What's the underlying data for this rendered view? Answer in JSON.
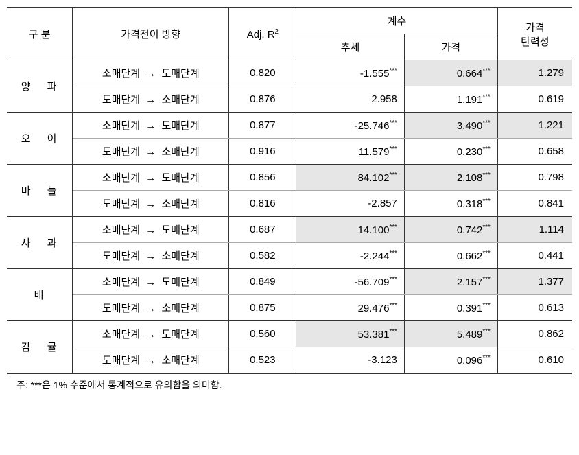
{
  "table": {
    "headers": {
      "category": "구  분",
      "direction": "가격전이 방향",
      "adjr2": "Adj. R",
      "adjr2_sup": "2",
      "coef_group": "계수",
      "trend": "추세",
      "price": "가격",
      "elasticity": "가격\n탄력성"
    },
    "arrow": "→",
    "dir_retail_to_whole": "소매단계",
    "dir_whole_to_retail": "도매단계",
    "categories": [
      {
        "name": "양  파",
        "rows": [
          {
            "dir_from": "소매단계",
            "dir_to": "도매단계",
            "adjr2": "0.820",
            "trend": "-1.555",
            "trend_sig": "***",
            "trend_hl": false,
            "price": "0.664",
            "price_sig": "***",
            "price_hl": true,
            "elast": "1.279",
            "elast_hl": true
          },
          {
            "dir_from": "도매단계",
            "dir_to": "소매단계",
            "adjr2": "0.876",
            "trend": "2.958",
            "trend_sig": "",
            "trend_hl": false,
            "price": "1.191",
            "price_sig": "***",
            "price_hl": false,
            "elast": "0.619",
            "elast_hl": false
          }
        ]
      },
      {
        "name": "오  이",
        "rows": [
          {
            "dir_from": "소매단계",
            "dir_to": "도매단계",
            "adjr2": "0.877",
            "trend": "-25.746",
            "trend_sig": "***",
            "trend_hl": false,
            "price": "3.490",
            "price_sig": "***",
            "price_hl": true,
            "elast": "1.221",
            "elast_hl": true
          },
          {
            "dir_from": "도매단계",
            "dir_to": "소매단계",
            "adjr2": "0.916",
            "trend": "11.579",
            "trend_sig": "***",
            "trend_hl": false,
            "price": "0.230",
            "price_sig": "***",
            "price_hl": false,
            "elast": "0.658",
            "elast_hl": false
          }
        ]
      },
      {
        "name": "마  늘",
        "rows": [
          {
            "dir_from": "소매단계",
            "dir_to": "도매단계",
            "adjr2": "0.856",
            "trend": "84.102",
            "trend_sig": "***",
            "trend_hl": true,
            "price": "2.108",
            "price_sig": "***",
            "price_hl": true,
            "elast": "0.798",
            "elast_hl": false
          },
          {
            "dir_from": "도매단계",
            "dir_to": "소매단계",
            "adjr2": "0.816",
            "trend": "-2.857",
            "trend_sig": "",
            "trend_hl": false,
            "price": "0.318",
            "price_sig": "***",
            "price_hl": false,
            "elast": "0.841",
            "elast_hl": false
          }
        ]
      },
      {
        "name": "사  과",
        "rows": [
          {
            "dir_from": "소매단계",
            "dir_to": "도매단계",
            "adjr2": "0.687",
            "trend": "14.100",
            "trend_sig": "***",
            "trend_hl": true,
            "price": "0.742",
            "price_sig": "***",
            "price_hl": true,
            "elast": "1.114",
            "elast_hl": true
          },
          {
            "dir_from": "도매단계",
            "dir_to": "소매단계",
            "adjr2": "0.582",
            "trend": "-2.244",
            "trend_sig": "***",
            "trend_hl": false,
            "price": "0.662",
            "price_sig": "***",
            "price_hl": false,
            "elast": "0.441",
            "elast_hl": false
          }
        ]
      },
      {
        "name": "배",
        "rows": [
          {
            "dir_from": "소매단계",
            "dir_to": "도매단계",
            "adjr2": "0.849",
            "trend": "-56.709",
            "trend_sig": "***",
            "trend_hl": false,
            "price": "2.157",
            "price_sig": "***",
            "price_hl": true,
            "elast": "1.377",
            "elast_hl": true
          },
          {
            "dir_from": "도매단계",
            "dir_to": "소매단계",
            "adjr2": "0.875",
            "trend": "29.476",
            "trend_sig": "***",
            "trend_hl": false,
            "price": "0.391",
            "price_sig": "***",
            "price_hl": false,
            "elast": "0.613",
            "elast_hl": false
          }
        ]
      },
      {
        "name": "감  귤",
        "rows": [
          {
            "dir_from": "소매단계",
            "dir_to": "도매단계",
            "adjr2": "0.560",
            "trend": "53.381",
            "trend_sig": "***",
            "trend_hl": true,
            "price": "5.489",
            "price_sig": "***",
            "price_hl": true,
            "elast": "0.862",
            "elast_hl": false
          },
          {
            "dir_from": "도매단계",
            "dir_to": "소매단계",
            "adjr2": "0.523",
            "trend": "-3.123",
            "trend_sig": "",
            "trend_hl": false,
            "price": "0.096",
            "price_sig": "***",
            "price_hl": false,
            "elast": "0.610",
            "elast_hl": false
          }
        ]
      }
    ],
    "footnote": "주: ***은 1% 수준에서 통계적으로 유의함을 의미함.",
    "colors": {
      "highlight": "#e6e6e6",
      "border": "#333333",
      "background": "#ffffff"
    }
  }
}
